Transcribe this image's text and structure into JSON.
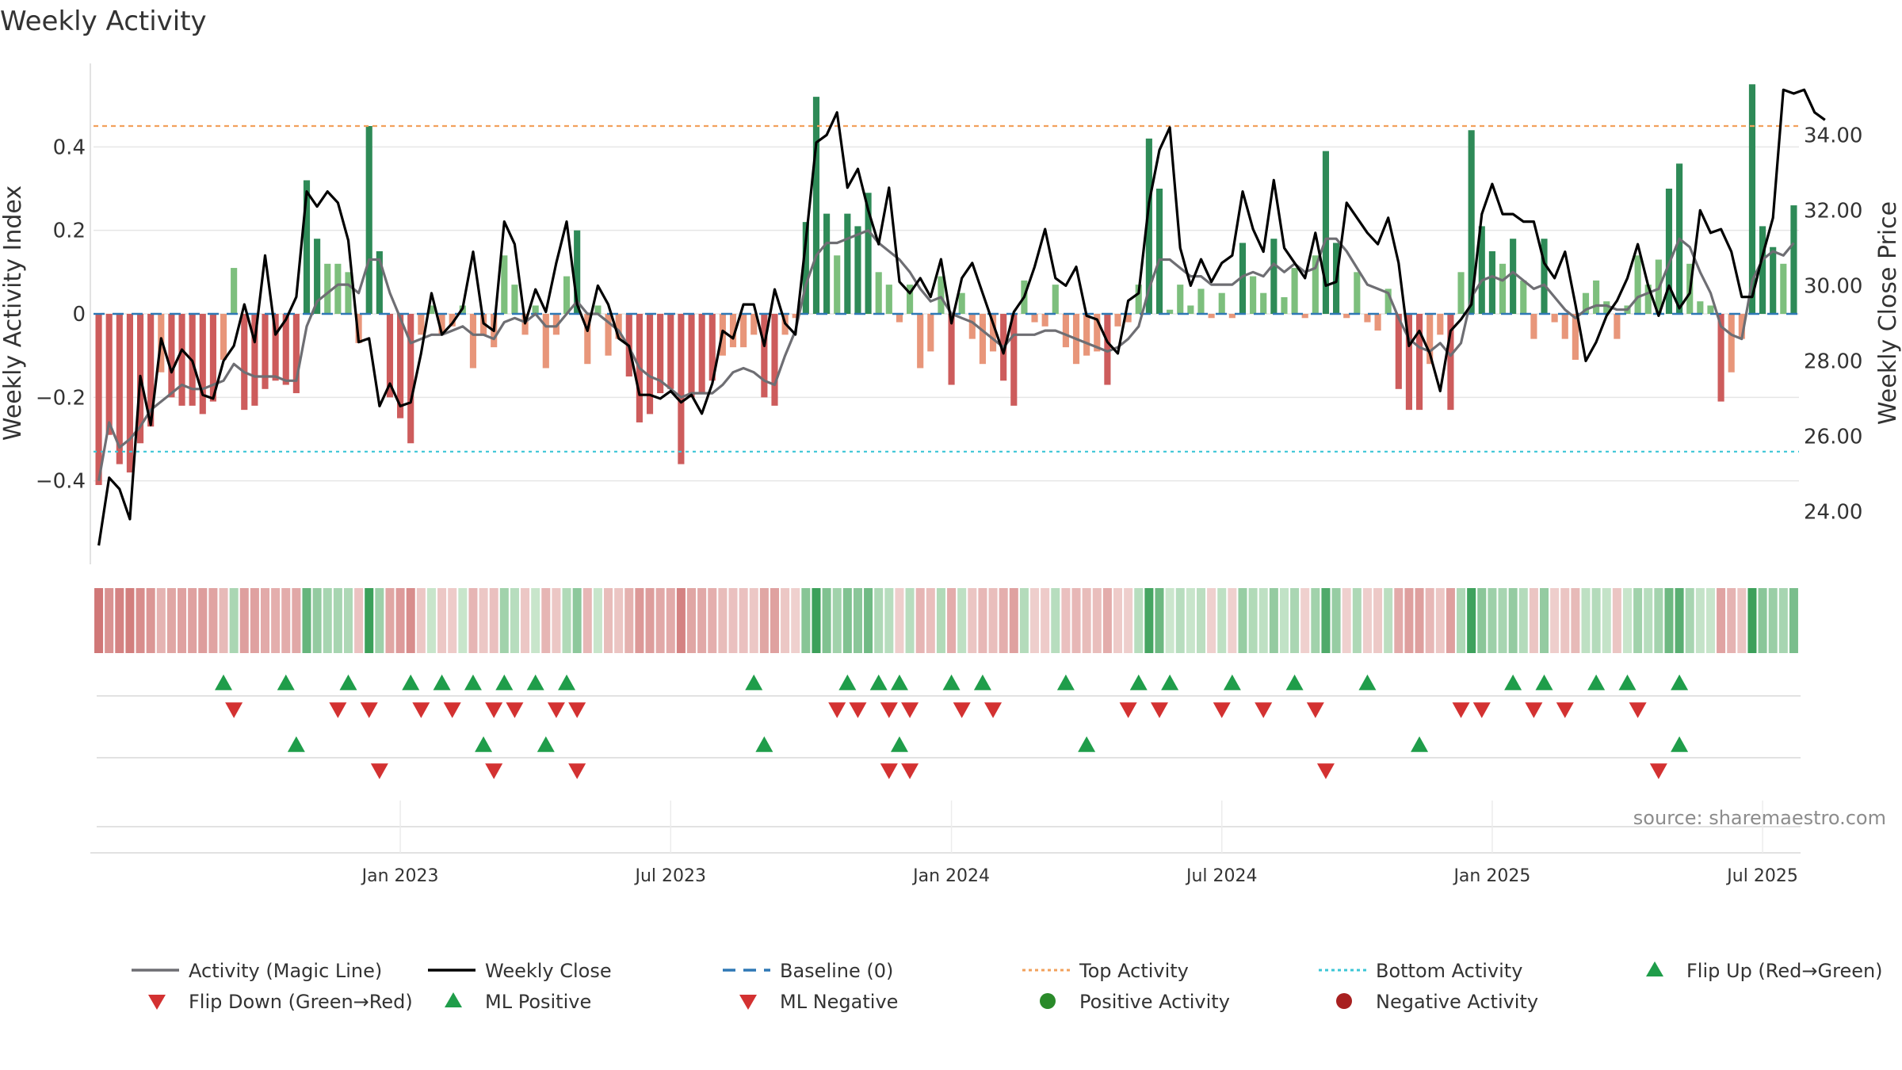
{
  "chart_data": {
    "type": "bar",
    "title": "Weekly Activity",
    "ylabel": "Weekly Activity Index",
    "y2label": "Weekly Close Price",
    "ylim": [
      -0.6,
      0.6
    ],
    "y2lim": [
      22.6,
      35.9
    ],
    "yticks": [
      {
        "v": 0.4,
        "label": "0.4"
      },
      {
        "v": 0.2,
        "label": "0.2"
      },
      {
        "v": 0,
        "label": "0"
      },
      {
        "v": -0.2,
        "label": "−0.2"
      },
      {
        "v": -0.4,
        "label": "−0.4"
      }
    ],
    "y2ticks": [
      {
        "v": 34,
        "label": "34.00"
      },
      {
        "v": 32,
        "label": "32.00"
      },
      {
        "v": 30,
        "label": "30.00"
      },
      {
        "v": 28,
        "label": "28.00"
      },
      {
        "v": 26,
        "label": "26.00"
      },
      {
        "v": 24,
        "label": "24.00"
      }
    ],
    "xticks": [
      {
        "week": 29,
        "label": "Jan 2023"
      },
      {
        "week": 55,
        "label": "Jul 2023"
      },
      {
        "week": 82,
        "label": "Jan 2024"
      },
      {
        "week": 108,
        "label": "Jul 2024"
      },
      {
        "week": 134,
        "label": "Jan 2025"
      },
      {
        "week": 160,
        "label": "Jul 2025"
      }
    ],
    "top_activity": 0.45,
    "bottom_activity": -0.33,
    "baseline": 0,
    "activity": [
      -0.41,
      -0.29,
      -0.36,
      -0.38,
      -0.31,
      -0.27,
      -0.14,
      -0.2,
      -0.22,
      -0.22,
      -0.24,
      -0.21,
      -0.11,
      0.11,
      -0.23,
      -0.22,
      -0.18,
      -0.16,
      -0.17,
      -0.19,
      0.32,
      0.18,
      0.12,
      0.12,
      0.1,
      -0.07,
      0.45,
      0.15,
      -0.2,
      -0.25,
      -0.31,
      -0.05,
      0.02,
      -0.05,
      -0.03,
      0.02,
      -0.13,
      -0.05,
      -0.08,
      0.14,
      0.07,
      -0.05,
      0.02,
      -0.13,
      -0.05,
      0.09,
      0.2,
      -0.12,
      0.02,
      -0.1,
      -0.06,
      -0.15,
      -0.26,
      -0.24,
      -0.19,
      -0.18,
      -0.36,
      -0.2,
      -0.19,
      -0.16,
      -0.1,
      -0.08,
      -0.08,
      -0.05,
      -0.2,
      -0.22,
      -0.05,
      -0.01,
      0.22,
      0.52,
      0.24,
      0.14,
      0.24,
      0.21,
      0.29,
      0.1,
      0.07,
      -0.02,
      0.07,
      -0.13,
      -0.09,
      0.09,
      -0.17,
      0.05,
      -0.06,
      -0.12,
      -0.09,
      -0.16,
      -0.22,
      0.08,
      -0.02,
      -0.03,
      0.07,
      -0.08,
      -0.12,
      -0.1,
      -0.09,
      -0.17,
      -0.03,
      -0.02,
      0.07,
      0.42,
      0.3,
      0.01,
      0.07,
      0.02,
      0.06,
      -0.01,
      0.05,
      -0.01,
      0.17,
      0.09,
      0.05,
      0.18,
      0.04,
      0.11,
      -0.01,
      0.14,
      0.39,
      0.17,
      -0.01,
      0.1,
      -0.02,
      -0.04,
      0.06,
      -0.18,
      -0.23,
      -0.23,
      -0.12,
      -0.05,
      -0.23,
      0.1,
      0.44,
      0.21,
      0.15,
      0.12,
      0.18,
      0.08,
      -0.06,
      0.18,
      -0.02,
      -0.06,
      -0.11,
      0.05,
      0.08,
      0.03,
      -0.06,
      0.02,
      0.14,
      0.07,
      0.13,
      0.3,
      0.36,
      0.12,
      0.03,
      0.02,
      -0.21,
      -0.14,
      -0.06,
      0.55,
      0.21,
      0.16,
      0.12,
      0.26
    ],
    "magic_line": [
      -0.4,
      -0.26,
      -0.32,
      -0.3,
      -0.27,
      -0.23,
      -0.21,
      -0.19,
      -0.17,
      -0.18,
      -0.18,
      -0.17,
      -0.16,
      -0.12,
      -0.14,
      -0.15,
      -0.15,
      -0.15,
      -0.16,
      -0.16,
      -0.03,
      0.03,
      0.05,
      0.07,
      0.07,
      0.05,
      0.13,
      0.13,
      0.05,
      -0.01,
      -0.07,
      -0.06,
      -0.05,
      -0.05,
      -0.04,
      -0.03,
      -0.05,
      -0.05,
      -0.06,
      -0.02,
      -0.01,
      -0.02,
      0,
      -0.03,
      -0.03,
      0,
      0.03,
      0,
      0,
      -0.02,
      -0.04,
      -0.08,
      -0.13,
      -0.15,
      -0.16,
      -0.18,
      -0.2,
      -0.19,
      -0.19,
      -0.19,
      -0.17,
      -0.14,
      -0.13,
      -0.14,
      -0.16,
      -0.17,
      -0.1,
      -0.04,
      0.07,
      0.14,
      0.17,
      0.17,
      0.18,
      0.19,
      0.2,
      0.17,
      0.15,
      0.13,
      0.1,
      0.06,
      0.03,
      0.04,
      0,
      -0.01,
      -0.02,
      -0.04,
      -0.06,
      -0.08,
      -0.05,
      -0.05,
      -0.05,
      -0.04,
      -0.04,
      -0.05,
      -0.06,
      -0.07,
      -0.08,
      -0.09,
      -0.08,
      -0.06,
      -0.03,
      0.06,
      0.13,
      0.13,
      0.11,
      0.09,
      0.09,
      0.07,
      0.07,
      0.07,
      0.09,
      0.1,
      0.09,
      0.12,
      0.1,
      0.12,
      0.1,
      0.11,
      0.18,
      0.18,
      0.15,
      0.11,
      0.07,
      0.06,
      0.05,
      -0.01,
      -0.06,
      -0.08,
      -0.09,
      -0.07,
      -0.1,
      -0.07,
      0.04,
      0.08,
      0.09,
      0.08,
      0.1,
      0.08,
      0.06,
      0.07,
      0.04,
      0.01,
      -0.01,
      0.01,
      0.02,
      0.02,
      0.01,
      0.01,
      0.04,
      0.05,
      0.06,
      0.12,
      0.18,
      0.16,
      0.1,
      0.05,
      -0.03,
      -0.05,
      -0.06,
      0.08,
      0.13,
      0.15,
      0.14,
      0.17
    ],
    "weekly_close": [
      23.1,
      24.9,
      24.6,
      23.8,
      27.6,
      26.3,
      28.6,
      27.7,
      28.3,
      28,
      27.1,
      27,
      28,
      28.4,
      29.5,
      28.5,
      30.8,
      28.7,
      29.1,
      29.7,
      32.5,
      32.1,
      32.5,
      32.2,
      31.2,
      28.5,
      28.6,
      26.8,
      27.4,
      26.8,
      26.9,
      28.2,
      29.8,
      28.7,
      29,
      29.4,
      30.9,
      29,
      28.8,
      31.7,
      31.1,
      29,
      29.9,
      29.3,
      30.6,
      31.7,
      29.5,
      28.8,
      30,
      29.5,
      28.6,
      28.4,
      27.1,
      27.1,
      27,
      27.2,
      26.9,
      27.1,
      26.6,
      27.4,
      28.8,
      28.6,
      29.5,
      29.5,
      28.4,
      29.9,
      29,
      28.7,
      31.2,
      33.8,
      34,
      34.6,
      32.6,
      33.1,
      32,
      31.1,
      32.6,
      30.1,
      29.8,
      30.2,
      29.7,
      30.7,
      29,
      30.2,
      30.6,
      29.8,
      29,
      28.2,
      29.3,
      29.7,
      30.5,
      31.5,
      30.2,
      30,
      30.5,
      29.2,
      29.1,
      28.5,
      28.2,
      29.6,
      29.8,
      32.2,
      33.6,
      34.2,
      31,
      30,
      30.7,
      30.1,
      30.6,
      30.8,
      32.5,
      31.5,
      30.9,
      32.8,
      31,
      30.6,
      30.2,
      31.4,
      30,
      30.1,
      32.2,
      31.8,
      31.4,
      31.1,
      31.8,
      30.6,
      28.4,
      28.8,
      28.2,
      27.2,
      28.8,
      29.1,
      29.5,
      31.9,
      32.7,
      31.9,
      31.9,
      31.7,
      31.7,
      30.6,
      30.2,
      30.9,
      29.5,
      28,
      28.5,
      29.2,
      29.6,
      30.2,
      31.1,
      30,
      29.2,
      30,
      29.4,
      29.8,
      32,
      31.4,
      31.5,
      30.9,
      29.7,
      29.7,
      30.8,
      31.8,
      35.2,
      35.1,
      35.2,
      34.6,
      34.4
    ],
    "strip_bands": [
      {
        "from": 0,
        "to": 20,
        "tone": "red"
      },
      {
        "from": 20,
        "to": 29,
        "tone": "green"
      },
      {
        "from": 29,
        "to": 70,
        "tone": "mixed"
      },
      {
        "from": 70,
        "to": 80,
        "tone": "green"
      }
    ],
    "markers": {
      "flip_up_row1_weeks": [
        12,
        18,
        24,
        30,
        33,
        36,
        39,
        42,
        45,
        63,
        72,
        75,
        77,
        82,
        85,
        93,
        100,
        103,
        109,
        115,
        122,
        136,
        139,
        144,
        147,
        152
      ],
      "flip_down_row1_weeks": [
        13,
        23,
        26,
        31,
        34,
        38,
        40,
        44,
        46,
        71,
        73,
        76,
        78,
        83,
        86,
        99,
        102,
        108,
        112,
        117,
        131,
        133,
        138,
        141,
        148
      ],
      "ml_positive_row2_weeks": [
        19,
        37,
        43,
        64,
        77,
        95,
        127,
        152
      ],
      "ml_negative_row2_weeks": [
        27,
        38,
        46,
        76,
        78,
        118,
        150
      ]
    },
    "legend": [
      {
        "label": "Activity (Magic Line)",
        "kind": "line",
        "color": "#6e6e73"
      },
      {
        "label": "Weekly Close",
        "kind": "line",
        "color": "#000000"
      },
      {
        "label": "Baseline (0)",
        "kind": "dash",
        "color": "#2f78b5"
      },
      {
        "label": "Top Activity",
        "kind": "dot",
        "color": "#f2a15c"
      },
      {
        "label": "Bottom Activity",
        "kind": "dot",
        "color": "#3cc6d6"
      },
      {
        "label": "Flip Up (Red→Green)",
        "kind": "tri-up",
        "color": "#1f9d4a"
      },
      {
        "label": "Flip Down (Green→Red)",
        "kind": "tri-down",
        "color": "#d33131"
      },
      {
        "label": "ML Positive",
        "kind": "tri-up",
        "color": "#1f9d4a"
      },
      {
        "label": "ML Negative",
        "kind": "tri-down",
        "color": "#d33131"
      },
      {
        "label": "Positive Activity",
        "kind": "circle",
        "color": "#2a8a2a"
      },
      {
        "label": "Negative Activity",
        "kind": "circle",
        "color": "#a82020"
      }
    ],
    "source": "source: sharemaestro.com",
    "colors": {
      "pos_strong": "#2e8a57",
      "pos_light": "#7dbf7d",
      "neg_strong": "#cd5c5c",
      "neg_light": "#e8967a",
      "line_close": "#000000",
      "line_magic": "#6e6e73",
      "top": "#f2a15c",
      "bottom": "#3cc6d6",
      "baseline": "#2f78b5",
      "up": "#1f9d4a",
      "down": "#d33131"
    }
  }
}
